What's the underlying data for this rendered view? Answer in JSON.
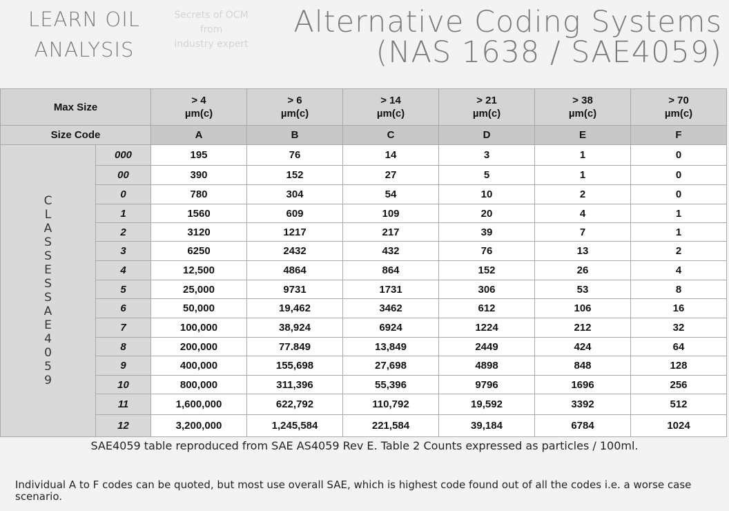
{
  "header": {
    "brand_line1": "LEARN OIL",
    "brand_line2": "ANALYSIS",
    "tagline_line1": "Secrets of OCM",
    "tagline_line2": "from",
    "tagline_line3": "industry expert",
    "title_line1": "Alternative Coding Systems",
    "title_line2": "(NAS 1638 / SAE4059)"
  },
  "table": {
    "max_size_label": "Max Size",
    "size_code_label": "Size Code",
    "side_label": "CLASSES SAE4059",
    "columns": [
      {
        "max": "> 4",
        "unit": "µm(c)",
        "code": "A"
      },
      {
        "max": "> 6",
        "unit": "µm(c)",
        "code": "B"
      },
      {
        "max": "> 14",
        "unit": "µm(c)",
        "code": "C"
      },
      {
        "max": "> 21",
        "unit": "µm(c)",
        "code": "D"
      },
      {
        "max": "> 38",
        "unit": "µm(c)",
        "code": "E"
      },
      {
        "max": "> 70",
        "unit": "µm(c)",
        "code": "F"
      }
    ],
    "rows": [
      {
        "cls": "000",
        "values": [
          "195",
          "76",
          "14",
          "3",
          "1",
          "0"
        ]
      },
      {
        "cls": "00",
        "values": [
          "390",
          "152",
          "27",
          "5",
          "1",
          "0"
        ]
      },
      {
        "cls": "0",
        "values": [
          "780",
          "304",
          "54",
          "10",
          "2",
          "0"
        ]
      },
      {
        "cls": "1",
        "values": [
          "1560",
          "609",
          "109",
          "20",
          "4",
          "1"
        ]
      },
      {
        "cls": "2",
        "values": [
          "3120",
          "1217",
          "217",
          "39",
          "7",
          "1"
        ]
      },
      {
        "cls": "3",
        "values": [
          "6250",
          "2432",
          "432",
          "76",
          "13",
          "2"
        ]
      },
      {
        "cls": "4",
        "values": [
          "12,500",
          "4864",
          "864",
          "152",
          "26",
          "4"
        ]
      },
      {
        "cls": "5",
        "values": [
          "25,000",
          "9731",
          "1731",
          "306",
          "53",
          "8"
        ]
      },
      {
        "cls": "6",
        "values": [
          "50,000",
          "19,462",
          "3462",
          "612",
          "106",
          "16"
        ]
      },
      {
        "cls": "7",
        "values": [
          "100,000",
          "38,924",
          "6924",
          "1224",
          "212",
          "32"
        ]
      },
      {
        "cls": "8",
        "values": [
          "200,000",
          "77.849",
          "13,849",
          "2449",
          "424",
          "64"
        ]
      },
      {
        "cls": "9",
        "values": [
          "400,000",
          "155,698",
          "27,698",
          "4898",
          "848",
          "128"
        ]
      },
      {
        "cls": "10",
        "values": [
          "800,000",
          "311,396",
          "55,396",
          "9796",
          "1696",
          "256"
        ]
      },
      {
        "cls": "11",
        "values": [
          "1,600,000",
          "622,792",
          "110,792",
          "19,592",
          "3392",
          "512"
        ]
      },
      {
        "cls": "12",
        "values": [
          "3,200,000",
          "1,245,584",
          "221,584",
          "39,184",
          "6784",
          "1024"
        ]
      }
    ]
  },
  "notes": {
    "source": "SAE4059 table reproduced from SAE AS4059 Rev E. Table 2 Counts expressed as particles / 100ml.",
    "explanation": "Individual A to F codes can be quoted, but most use overall SAE, which is highest code found out of all the codes i.e. a worse case scenario."
  }
}
